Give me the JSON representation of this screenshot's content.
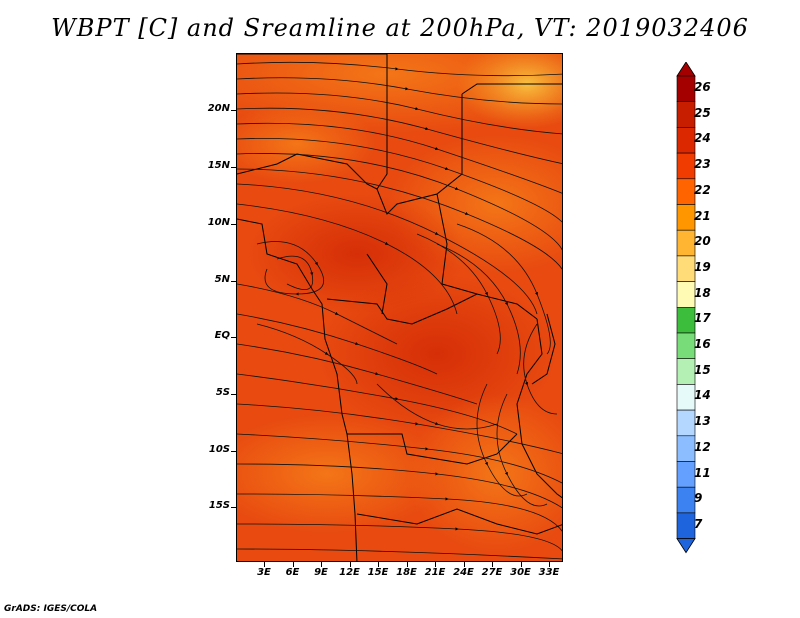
{
  "title": "WBPT [C] and Sreamline at 200hPa, VT: 2019032406",
  "footer": "GrADS: IGES/COLA",
  "axes": {
    "lat_labels": [
      "20N",
      "15N",
      "10N",
      "5N",
      "EQ",
      "5S",
      "10S",
      "15S"
    ],
    "lon_labels": [
      "3E",
      "6E",
      "9E",
      "12E",
      "15E",
      "18E",
      "21E",
      "24E",
      "27E",
      "30E",
      "33E"
    ]
  },
  "legend": {
    "labels": [
      "26",
      "25",
      "24",
      "23",
      "22",
      "21",
      "20",
      "19",
      "18",
      "17",
      "16",
      "15",
      "14",
      "13",
      "12",
      "11",
      "9",
      "7"
    ],
    "colors": [
      "#a50000",
      "#c81e00",
      "#dc2800",
      "#f03c00",
      "#ff6400",
      "#ff9600",
      "#ffb432",
      "#ffdc78",
      "#fffab4",
      "#3cbe3c",
      "#78dc78",
      "#b4f0b4",
      "#e6fafa",
      "#b4d7ff",
      "#8cbeff",
      "#64a0ff",
      "#3c82f0",
      "#1e64dc"
    ]
  },
  "colors": {
    "base_field": "#e84a10",
    "warm_field": "#f57a18",
    "hot_field": "#d93008",
    "yellow_patch": "#f5b030"
  },
  "icons": {
    "legend_top": "triangle-up-icon",
    "legend_bottom": "triangle-down-icon"
  }
}
